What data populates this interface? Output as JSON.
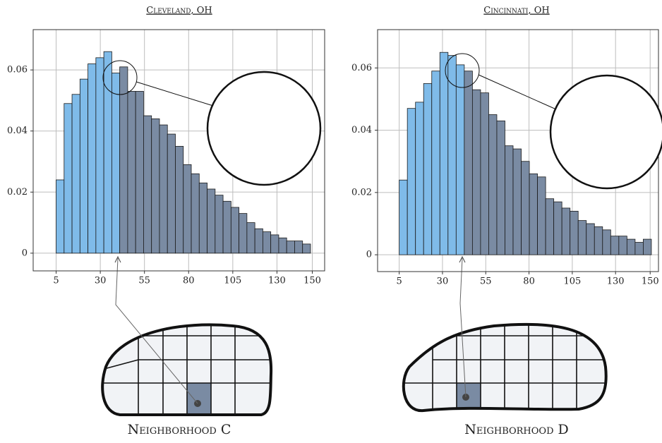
{
  "chart_data": [
    {
      "type": "histogram",
      "title": "Cleveland, OH",
      "annotation": "Neighborhood C",
      "bins": [
        5,
        9.5,
        14,
        18.5,
        23,
        27.5,
        32,
        36.5,
        41,
        45.5,
        50,
        54.5,
        59,
        63.5,
        68,
        72.5,
        77,
        81.5,
        86,
        90.5,
        95,
        99.5,
        104,
        108.5,
        113,
        117.5,
        122,
        126.5,
        131,
        135.5,
        140,
        144.5,
        149
      ],
      "values": [
        0.024,
        0.049,
        0.052,
        0.057,
        0.062,
        0.064,
        0.066,
        0.059,
        0.061,
        0.053,
        0.053,
        0.045,
        0.044,
        0.042,
        0.039,
        0.035,
        0.029,
        0.026,
        0.023,
        0.021,
        0.019,
        0.017,
        0.015,
        0.013,
        0.01,
        0.008,
        0.007,
        0.006,
        0.005,
        0.004,
        0.004,
        0.003
      ],
      "colors": [
        "#7fbbe9",
        "#7fbbe9",
        "#7fbbe9",
        "#7fbbe9",
        "#7fbbe9",
        "#7fbbe9",
        "#7fbbe9",
        "#7fbbe9",
        "#7a8ba3",
        "#7a8ba3",
        "#7a8ba3",
        "#7a8ba3",
        "#7a8ba3",
        "#7a8ba3",
        "#7a8ba3",
        "#7a8ba3",
        "#7a8ba3",
        "#7a8ba3",
        "#7a8ba3",
        "#7a8ba3",
        "#7a8ba3",
        "#7a8ba3",
        "#7a8ba3",
        "#7a8ba3",
        "#7a8ba3",
        "#7a8ba3",
        "#7a8ba3",
        "#7a8ba3",
        "#7a8ba3",
        "#7a8ba3",
        "#7a8ba3",
        "#7a8ba3"
      ],
      "xlim": [
        -8,
        157
      ],
      "xticks": [
        5,
        30,
        55,
        80,
        105,
        130,
        150
      ],
      "ylim": [
        -0.0058,
        0.0732
      ],
      "yticks": [
        0,
        0.02,
        0.04,
        0.06
      ],
      "grid": true
    },
    {
      "type": "histogram",
      "title": "Cincinnati, OH",
      "annotation": "Neighborhood D",
      "bins": [
        5,
        9.7,
        14.4,
        19.1,
        23.8,
        28.5,
        33.2,
        37.9,
        42.6,
        47.3,
        52,
        56.7,
        61.4,
        66.1,
        70.8,
        75.5,
        80.2,
        84.9,
        89.6,
        94.3,
        99,
        103.7,
        108.4,
        113.1,
        117.8,
        122.5,
        127.2,
        131.9,
        136.6,
        141.3,
        146,
        150.7
      ],
      "values": [
        0.024,
        0.047,
        0.049,
        0.055,
        0.059,
        0.065,
        0.064,
        0.061,
        0.059,
        0.053,
        0.052,
        0.045,
        0.043,
        0.035,
        0.034,
        0.03,
        0.026,
        0.025,
        0.018,
        0.017,
        0.015,
        0.014,
        0.011,
        0.01,
        0.009,
        0.008,
        0.006,
        0.006,
        0.005,
        0.004,
        0.005
      ],
      "colors": [
        "#7fbbe9",
        "#7fbbe9",
        "#7fbbe9",
        "#7fbbe9",
        "#7fbbe9",
        "#7fbbe9",
        "#7fbbe9",
        "#7fbbe9",
        "#7a8ba3",
        "#7a8ba3",
        "#7a8ba3",
        "#7a8ba3",
        "#7a8ba3",
        "#7a8ba3",
        "#7a8ba3",
        "#7a8ba3",
        "#7a8ba3",
        "#7a8ba3",
        "#7a8ba3",
        "#7a8ba3",
        "#7a8ba3",
        "#7a8ba3",
        "#7a8ba3",
        "#7a8ba3",
        "#7a8ba3",
        "#7a8ba3",
        "#7a8ba3",
        "#7a8ba3",
        "#7a8ba3",
        "#7a8ba3",
        "#7a8ba3"
      ],
      "xlim": [
        -7.5,
        154.8
      ],
      "xticks": [
        5,
        30,
        55,
        80,
        105,
        130,
        150
      ],
      "ylim": [
        -0.0054,
        0.0723
      ],
      "yticks": [
        0,
        0.02,
        0.04,
        0.06
      ],
      "grid": true
    }
  ]
}
